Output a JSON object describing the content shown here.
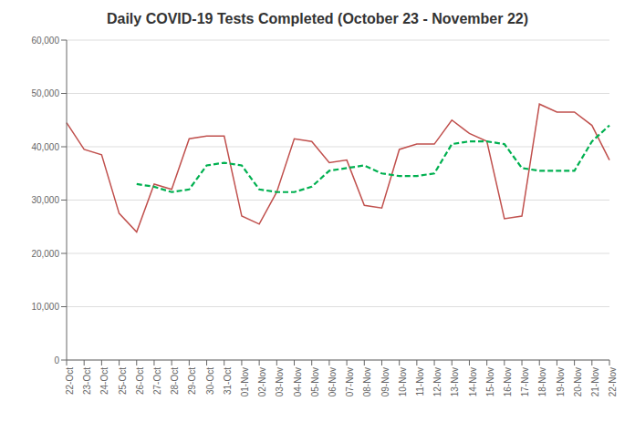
{
  "chart_data": {
    "type": "line",
    "title": "Daily COVID-19 Tests Completed (October 23 - November 22)",
    "categories": [
      "22-Oct",
      "23-Oct",
      "24-Oct",
      "25-Oct",
      "26-Oct",
      "27-Oct",
      "28-Oct",
      "29-Oct",
      "30-Oct",
      "31-Oct",
      "01-Nov",
      "02-Nov",
      "03-Nov",
      "04-Nov",
      "05-Nov",
      "06-Nov",
      "07-Nov",
      "08-Nov",
      "09-Nov",
      "10-Nov",
      "11-Nov",
      "12-Nov",
      "13-Nov",
      "14-Nov",
      "15-Nov",
      "16-Nov",
      "17-Nov",
      "18-Nov",
      "19-Nov",
      "20-Nov",
      "21-Nov",
      "22-Nov"
    ],
    "series": [
      {
        "color": "#c0504d",
        "line_style": "solid",
        "values": [
          44500,
          39500,
          38500,
          27500,
          24000,
          33000,
          32000,
          41500,
          42000,
          42000,
          27000,
          25500,
          31500,
          41500,
          41000,
          37000,
          37500,
          29000,
          28500,
          39500,
          40500,
          40500,
          45000,
          42500,
          41000,
          26500,
          27000,
          48000,
          46500,
          46500,
          44000,
          37500
        ]
      },
      {
        "color": "#00b050",
        "line_style": "dashed",
        "values": [
          null,
          null,
          null,
          null,
          33000,
          32500,
          31500,
          32000,
          36500,
          37000,
          36500,
          32000,
          31500,
          31500,
          32500,
          35500,
          36000,
          36500,
          35000,
          34500,
          34500,
          35000,
          40500,
          41000,
          41000,
          40500,
          36000,
          35500,
          35500,
          35500,
          41000,
          44000
        ]
      }
    ],
    "ylim": [
      0,
      60000
    ],
    "yticks": [
      0,
      {
        "value": 10000,
        "label": "10,000"
      },
      {
        "value": 20000,
        "label": "20,000"
      },
      {
        "value": 30000,
        "label": "30,000"
      },
      {
        "value": 40000,
        "label": "40,000"
      },
      {
        "value": 50000,
        "label": "50,000"
      },
      {
        "value": 60000,
        "label": "60,000"
      }
    ],
    "grid": true
  }
}
